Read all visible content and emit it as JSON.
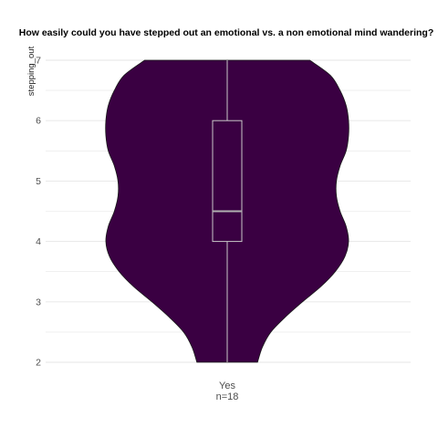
{
  "chart_data": {
    "type": "violin",
    "title": "How easily could you have stepped out an emotional vs. a non emotional mind wandering?",
    "xlabel": "",
    "ylabel": "stepping_out",
    "ylim": [
      2,
      7
    ],
    "yticks": [
      2,
      3,
      4,
      5,
      6,
      7
    ],
    "grid": true,
    "categories": [
      {
        "label": "Yes",
        "sublabel": "n=18"
      }
    ],
    "violin": {
      "density_profile": [
        [
          2.0,
          0.25
        ],
        [
          2.25,
          0.29
        ],
        [
          2.5,
          0.36
        ],
        [
          2.75,
          0.48
        ],
        [
          3.0,
          0.62
        ],
        [
          3.25,
          0.77
        ],
        [
          3.5,
          0.89
        ],
        [
          3.75,
          0.97
        ],
        [
          4.0,
          1.0
        ],
        [
          4.25,
          0.98
        ],
        [
          4.5,
          0.93
        ],
        [
          4.75,
          0.9
        ],
        [
          5.0,
          0.9
        ],
        [
          5.25,
          0.93
        ],
        [
          5.5,
          0.98
        ],
        [
          5.75,
          1.0
        ],
        [
          6.0,
          1.0
        ],
        [
          6.25,
          0.98
        ],
        [
          6.5,
          0.93
        ],
        [
          6.75,
          0.85
        ],
        [
          7.0,
          0.68
        ]
      ],
      "boxplot": {
        "min": 2,
        "q1": 4,
        "median": 4.5,
        "q3": 6,
        "max": 7
      }
    },
    "colors": {
      "violin_fill": "#3a0042",
      "violin_stroke": "#1a1a1a",
      "box_stroke": "#c8c8c8",
      "median_stroke": "#b0b0b0",
      "grid": "#e6e6e6",
      "text": "#4d4d4d",
      "title": "#000000"
    }
  }
}
